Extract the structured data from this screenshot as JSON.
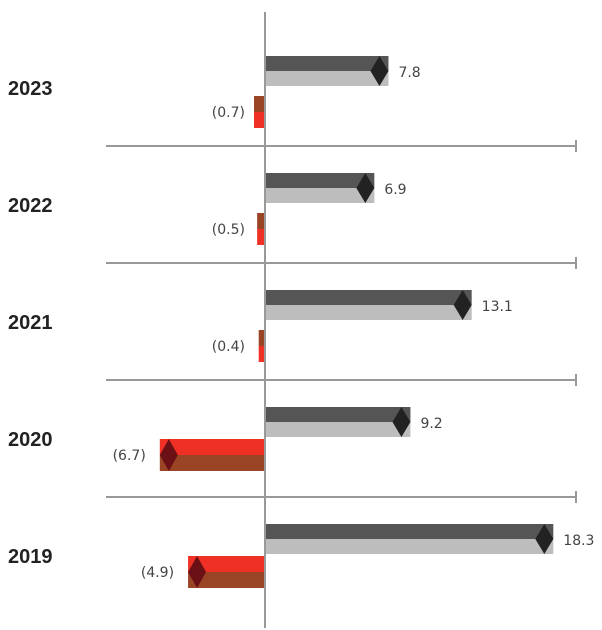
{
  "chart_data": {
    "type": "bar",
    "orientation": "horizontal",
    "categories": [
      "2023",
      "2022",
      "2021",
      "2020",
      "2019"
    ],
    "series": [
      {
        "values": [
          7.8,
          6.9,
          13.1,
          9.2,
          18.3
        ]
      },
      {
        "values": [
          -0.7,
          -0.5,
          -0.4,
          -6.7,
          -4.9
        ]
      }
    ],
    "value_labels": {
      "positive": [
        "7.8",
        "6.9",
        "13.1",
        "9.2",
        "18.3"
      ],
      "negative": [
        "(0.7)",
        "(0.5)",
        "(0.4)",
        "(6.7)",
        "(4.9)"
      ]
    },
    "title": "",
    "xlabel": "",
    "ylabel": "",
    "grid": false,
    "legend": "none",
    "colors": {
      "positive_top": "#555555",
      "positive_bottom": "#bdbdbd",
      "positive_cap": "#222222",
      "negative_top": "#ee3124",
      "negative_bottom": "#9a4426",
      "negative_cap": "#6b1015",
      "axis": "#999999"
    }
  }
}
